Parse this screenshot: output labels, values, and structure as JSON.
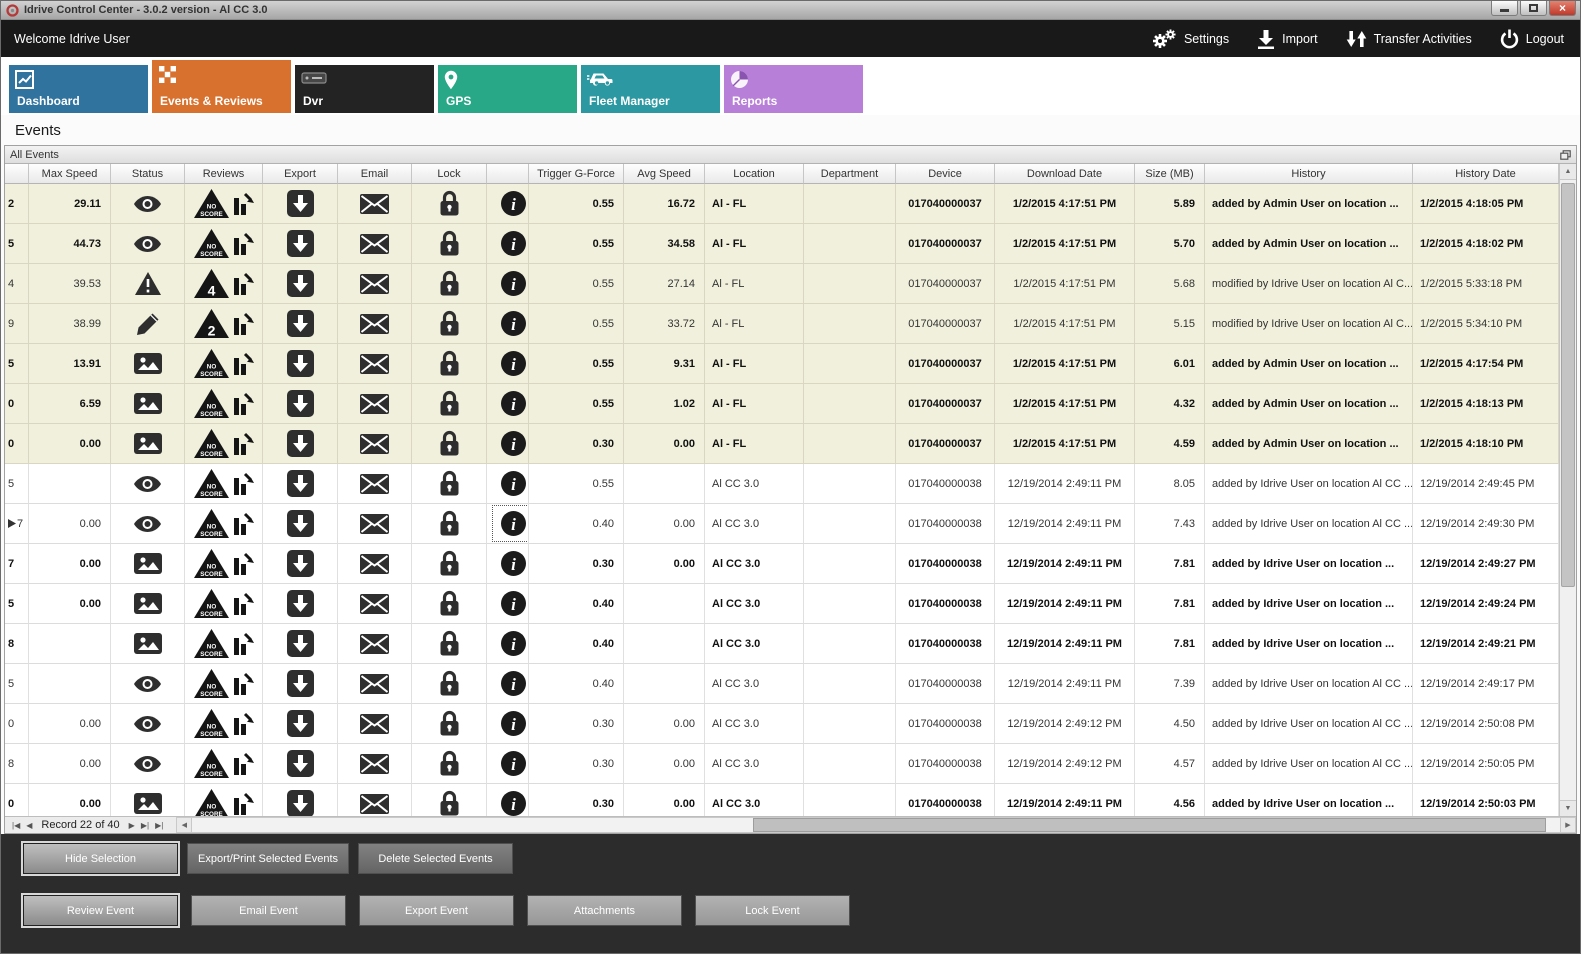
{
  "window": {
    "title": "Idrive Control Center - 3.0.2 version - Al CC 3.0"
  },
  "glyphs": {
    "first": "|◀",
    "prev": "◀",
    "next": "▶",
    "last": "▶|",
    "end": "▶|",
    "left": "◀",
    "right": "▶",
    "up": "▲",
    "down": "▼",
    "close": "×"
  },
  "topbar": {
    "welcome": "Welcome Idrive User",
    "actions": [
      {
        "label": "Settings",
        "icon": "gears"
      },
      {
        "label": "Import",
        "icon": "import"
      },
      {
        "label": "Transfer Activities",
        "icon": "transfer"
      },
      {
        "label": "Logout",
        "icon": "power"
      }
    ]
  },
  "tabs": [
    {
      "label": "Dashboard",
      "icon": "chart",
      "color": "#30739f",
      "active": false
    },
    {
      "label": "Events & Reviews",
      "icon": "checker",
      "color": "#d9712e",
      "active": true
    },
    {
      "label": "Dvr",
      "icon": "dvr",
      "color": "#232323",
      "active": false
    },
    {
      "label": "GPS",
      "icon": "pin",
      "color": "#28a887",
      "active": false
    },
    {
      "label": "Fleet Manager",
      "icon": "car",
      "color": "#2b98a2",
      "active": false
    },
    {
      "label": "Reports",
      "icon": "pie",
      "color": "#b77fd8",
      "active": false
    }
  ],
  "page": {
    "section_title": "Events",
    "panel_title": "All Events"
  },
  "pager": {
    "record_text": "Record 22 of 40"
  },
  "table": {
    "headers": [
      "",
      "Max Speed",
      "Status",
      "Reviews",
      "Export",
      "Email",
      "Lock",
      "",
      "Trigger G-Force",
      "Avg Speed",
      "Location",
      "Department",
      "Device",
      "Download Date",
      "Size (MB)",
      "History",
      "History Date"
    ],
    "rows": [
      {
        "gutter": "2",
        "max_speed": "29.11",
        "status": "eye",
        "review": "NO SCORE",
        "trigger": "0.55",
        "avg": "16.72",
        "location": "Al - FL",
        "department": "",
        "device": "017040000037",
        "download": "1/2/2015 4:17:51 PM",
        "size": "5.89",
        "history": "added by Admin User on location ...",
        "history_date": "1/2/2015 4:18:05 PM",
        "bold": true,
        "beige": true,
        "selected": false
      },
      {
        "gutter": "5",
        "max_speed": "44.73",
        "status": "eye",
        "review": "NO SCORE",
        "trigger": "0.55",
        "avg": "34.58",
        "location": "Al - FL",
        "department": "",
        "device": "017040000037",
        "download": "1/2/2015 4:17:51 PM",
        "size": "5.70",
        "history": "added by Admin User on location ...",
        "history_date": "1/2/2015 4:18:02 PM",
        "bold": true,
        "beige": true,
        "selected": false
      },
      {
        "gutter": "4",
        "max_speed": "39.53",
        "status": "warning",
        "review": "4",
        "trigger": "0.55",
        "avg": "27.14",
        "location": "Al - FL",
        "department": "",
        "device": "017040000037",
        "download": "1/2/2015 4:17:51 PM",
        "size": "5.68",
        "history": "modified by Idrive User on location Al C...",
        "history_date": "1/2/2015 5:33:18 PM",
        "bold": false,
        "beige": true,
        "selected": false
      },
      {
        "gutter": "9",
        "max_speed": "38.99",
        "status": "pencil",
        "review": "2",
        "trigger": "0.55",
        "avg": "33.72",
        "location": "Al - FL",
        "department": "",
        "device": "017040000037",
        "download": "1/2/2015 4:17:51 PM",
        "size": "5.15",
        "history": "modified by Idrive User on location Al C...",
        "history_date": "1/2/2015 5:34:10 PM",
        "bold": false,
        "beige": true,
        "selected": false
      },
      {
        "gutter": "5",
        "max_speed": "13.91",
        "status": "image",
        "review": "NO SCORE",
        "trigger": "0.55",
        "avg": "9.31",
        "location": "Al - FL",
        "department": "",
        "device": "017040000037",
        "download": "1/2/2015 4:17:51 PM",
        "size": "6.01",
        "history": "added by Admin User on location ...",
        "history_date": "1/2/2015 4:17:54 PM",
        "bold": true,
        "beige": true,
        "selected": false
      },
      {
        "gutter": "0",
        "max_speed": "6.59",
        "status": "image",
        "review": "NO SCORE",
        "trigger": "0.55",
        "avg": "1.02",
        "location": "Al - FL",
        "department": "",
        "device": "017040000037",
        "download": "1/2/2015 4:17:51 PM",
        "size": "4.32",
        "history": "added by Admin User on location ...",
        "history_date": "1/2/2015 4:18:13 PM",
        "bold": true,
        "beige": true,
        "selected": false
      },
      {
        "gutter": "0",
        "max_speed": "0.00",
        "status": "image",
        "review": "NO SCORE",
        "trigger": "0.30",
        "avg": "0.00",
        "location": "Al - FL",
        "department": "",
        "device": "017040000037",
        "download": "1/2/2015 4:17:51 PM",
        "size": "4.59",
        "history": "added by Admin User on location ...",
        "history_date": "1/2/2015 4:18:10 PM",
        "bold": true,
        "beige": true,
        "selected": false
      },
      {
        "gutter": "5",
        "max_speed": "",
        "status": "eye",
        "review": "NO SCORE",
        "trigger": "0.55",
        "avg": "",
        "location": "Al CC 3.0",
        "department": "",
        "device": "017040000038",
        "download": "12/19/2014 2:49:11 PM",
        "size": "8.05",
        "history": "added by Idrive User on location Al CC ...",
        "history_date": "12/19/2014 2:49:45 PM",
        "bold": false,
        "beige": false,
        "selected": false
      },
      {
        "gutter": "7",
        "max_speed": "0.00",
        "status": "eye",
        "review": "NO SCORE",
        "trigger": "0.40",
        "avg": "0.00",
        "location": "Al CC 3.0",
        "department": "",
        "device": "017040000038",
        "download": "12/19/2014 2:49:11 PM",
        "size": "7.43",
        "history": "added by Idrive User on location Al CC ...",
        "history_date": "12/19/2014 2:49:30 PM",
        "bold": false,
        "beige": false,
        "selected": true
      },
      {
        "gutter": "7",
        "max_speed": "0.00",
        "status": "image",
        "review": "NO SCORE",
        "trigger": "0.30",
        "avg": "0.00",
        "location": "Al CC 3.0",
        "department": "",
        "device": "017040000038",
        "download": "12/19/2014 2:49:11 PM",
        "size": "7.81",
        "history": "added by Idrive User on location ...",
        "history_date": "12/19/2014 2:49:27 PM",
        "bold": true,
        "beige": false,
        "selected": false
      },
      {
        "gutter": "5",
        "max_speed": "0.00",
        "status": "image",
        "review": "NO SCORE",
        "trigger": "0.40",
        "avg": "",
        "location": "Al CC 3.0",
        "department": "",
        "device": "017040000038",
        "download": "12/19/2014 2:49:11 PM",
        "size": "7.81",
        "history": "added by Idrive User on location ...",
        "history_date": "12/19/2014 2:49:24 PM",
        "bold": true,
        "beige": false,
        "selected": false
      },
      {
        "gutter": "8",
        "max_speed": "",
        "status": "image",
        "review": "NO SCORE",
        "trigger": "0.40",
        "avg": "",
        "location": "Al CC 3.0",
        "department": "",
        "device": "017040000038",
        "download": "12/19/2014 2:49:11 PM",
        "size": "7.81",
        "history": "added by Idrive User on location ...",
        "history_date": "12/19/2014 2:49:21 PM",
        "bold": true,
        "beige": false,
        "selected": false
      },
      {
        "gutter": "5",
        "max_speed": "",
        "status": "eye",
        "review": "NO SCORE",
        "trigger": "0.40",
        "avg": "",
        "location": "Al CC 3.0",
        "department": "",
        "device": "017040000038",
        "download": "12/19/2014 2:49:11 PM",
        "size": "7.39",
        "history": "added by Idrive User on location Al CC ...",
        "history_date": "12/19/2014 2:49:17 PM",
        "bold": false,
        "beige": false,
        "selected": false
      },
      {
        "gutter": "0",
        "max_speed": "0.00",
        "status": "eye",
        "review": "NO SCORE",
        "trigger": "0.30",
        "avg": "0.00",
        "location": "Al CC 3.0",
        "department": "",
        "device": "017040000038",
        "download": "12/19/2014 2:49:12 PM",
        "size": "4.50",
        "history": "added by Idrive User on location Al CC ...",
        "history_date": "12/19/2014 2:50:08 PM",
        "bold": false,
        "beige": false,
        "selected": false
      },
      {
        "gutter": "8",
        "max_speed": "0.00",
        "status": "eye",
        "review": "NO SCORE",
        "trigger": "0.30",
        "avg": "0.00",
        "location": "Al CC 3.0",
        "department": "",
        "device": "017040000038",
        "download": "12/19/2014 2:49:12 PM",
        "size": "4.57",
        "history": "added by Idrive User on location Al CC ...",
        "history_date": "12/19/2014 2:50:05 PM",
        "bold": false,
        "beige": false,
        "selected": false
      },
      {
        "gutter": "0",
        "max_speed": "0.00",
        "status": "image",
        "review": "NO SCORE",
        "trigger": "0.30",
        "avg": "0.00",
        "location": "Al CC 3.0",
        "department": "",
        "device": "017040000038",
        "download": "12/19/2014 2:49:11 PM",
        "size": "4.56",
        "history": "added by Idrive User on location ...",
        "history_date": "12/19/2014 2:50:03 PM",
        "bold": true,
        "beige": false,
        "selected": false
      }
    ]
  },
  "footer": {
    "row1": [
      {
        "label": "Hide Selection",
        "focused": true
      },
      {
        "label": "Export/Print Selected Events",
        "focused": false
      },
      {
        "label": "Delete Selected  Events",
        "focused": false
      }
    ],
    "row2": [
      {
        "label": "Review Event",
        "focused": true
      },
      {
        "label": "Email Event",
        "focused": false
      },
      {
        "label": "Export Event",
        "focused": false
      },
      {
        "label": "Attachments",
        "focused": false
      },
      {
        "label": "Lock Event",
        "focused": false
      }
    ]
  }
}
